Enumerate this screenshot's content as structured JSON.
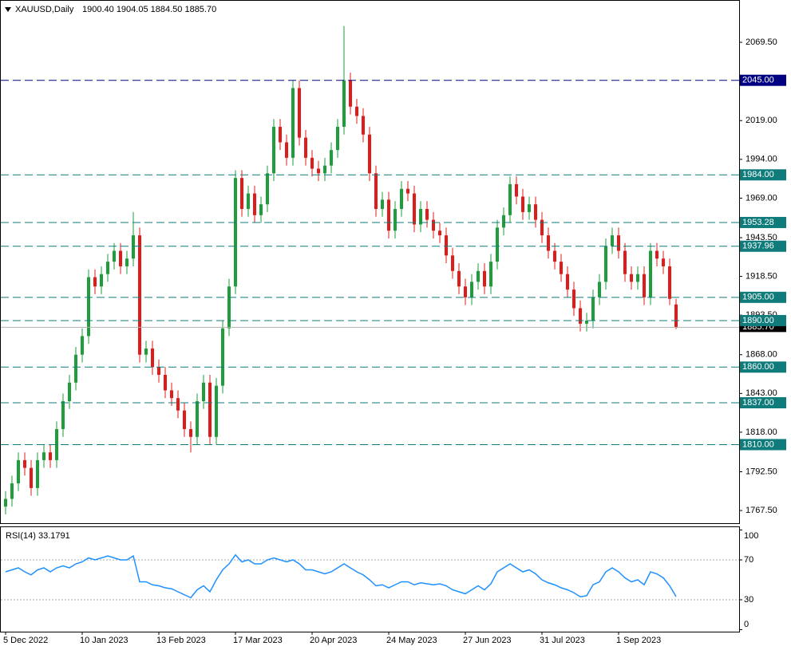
{
  "chart_data": {
    "type": "candlestick",
    "title": "XAUUSD,Daily",
    "quote": "1900.40 1904.05 1884.50 1885.70",
    "categories": [
      "5 Dec 2022",
      null,
      null,
      null,
      null,
      null,
      null,
      null,
      null,
      null,
      null,
      null,
      "10 Jan 2023",
      null,
      null,
      null,
      null,
      null,
      null,
      null,
      null,
      null,
      null,
      null,
      "13 Feb 2023",
      null,
      null,
      null,
      null,
      null,
      null,
      null,
      null,
      null,
      null,
      null,
      "17 Mar 2023",
      null,
      null,
      null,
      null,
      null,
      null,
      null,
      null,
      null,
      null,
      null,
      "20 Apr 2023",
      null,
      null,
      null,
      null,
      null,
      null,
      null,
      null,
      null,
      null,
      null,
      "24 May 2023",
      null,
      null,
      null,
      null,
      null,
      null,
      null,
      null,
      null,
      null,
      null,
      "27 Jun 2023",
      null,
      null,
      null,
      null,
      null,
      null,
      null,
      null,
      null,
      null,
      null,
      "31 Jul 2023",
      null,
      null,
      null,
      null,
      null,
      null,
      null,
      null,
      null,
      null,
      null,
      "1 Sep 2023",
      null,
      null,
      null,
      null,
      null,
      null,
      null,
      null,
      null
    ],
    "open": [
      1770,
      1775,
      1785,
      1800,
      1795,
      1782,
      1800,
      1805,
      1800,
      1820,
      1838,
      1850,
      1868,
      1880,
      1918,
      1912,
      1920,
      1928,
      1935,
      1925,
      1930,
      1945,
      1868,
      1872,
      1860,
      1855,
      1845,
      1840,
      1832,
      1820,
      1815,
      1838,
      1850,
      1815,
      1848,
      1885,
      1912,
      1982,
      1962,
      1972,
      1958,
      1965,
      1985,
      2015,
      2005,
      1995,
      2040,
      2008,
      1995,
      1988,
      1985,
      1990,
      2000,
      2015,
      2045,
      2028,
      2022,
      2010,
      1985,
      1962,
      1968,
      1948,
      1962,
      1975,
      1972,
      1952,
      1962,
      1955,
      1948,
      1945,
      1932,
      1922,
      1912,
      1905,
      1915,
      1922,
      1912,
      1928,
      1950,
      1958,
      1978,
      1970,
      1960,
      1965,
      1955,
      1945,
      1935,
      1928,
      1920,
      1910,
      1898,
      1888,
      1890,
      1905,
      1915,
      1938,
      1945,
      1935,
      1920,
      1915,
      1920,
      1905,
      1935,
      1930,
      1925,
      1900.4
    ],
    "high": [
      1780,
      1790,
      1805,
      1805,
      1800,
      1805,
      1810,
      1810,
      1825,
      1843,
      1855,
      1873,
      1885,
      1923,
      1923,
      1925,
      1933,
      1940,
      1940,
      1935,
      1960,
      1950,
      1877,
      1877,
      1865,
      1860,
      1850,
      1845,
      1837,
      1825,
      1843,
      1855,
      1855,
      1853,
      1890,
      1917,
      1987,
      1987,
      1977,
      1977,
      1970,
      1990,
      2020,
      2020,
      2010,
      2045,
      2045,
      2013,
      2000,
      1993,
      1995,
      2005,
      2020,
      2080,
      2050,
      2033,
      2027,
      2015,
      1990,
      1973,
      1973,
      1967,
      1980,
      1980,
      1977,
      1967,
      1967,
      1960,
      1953,
      1950,
      1937,
      1927,
      1917,
      1920,
      1927,
      1927,
      1933,
      1955,
      1963,
      1983,
      1983,
      1975,
      1970,
      1970,
      1960,
      1950,
      1940,
      1933,
      1925,
      1915,
      1903,
      1895,
      1910,
      1920,
      1943,
      1950,
      1950,
      1940,
      1925,
      1925,
      1925,
      1940,
      1940,
      1935,
      1930,
      1904.05
    ],
    "low": [
      1765,
      1770,
      1780,
      1790,
      1777,
      1777,
      1795,
      1795,
      1795,
      1815,
      1833,
      1845,
      1863,
      1875,
      1907,
      1907,
      1915,
      1923,
      1920,
      1920,
      1925,
      1863,
      1863,
      1855,
      1850,
      1840,
      1835,
      1827,
      1815,
      1805,
      1810,
      1833,
      1810,
      1810,
      1843,
      1880,
      1907,
      1957,
      1957,
      1953,
      1953,
      1960,
      1980,
      2000,
      1990,
      1990,
      2003,
      1990,
      1983,
      1980,
      1980,
      1985,
      1995,
      2010,
      2023,
      2017,
      2005,
      1980,
      1957,
      1957,
      1943,
      1943,
      1957,
      1967,
      1947,
      1947,
      1950,
      1943,
      1940,
      1927,
      1917,
      1907,
      1900,
      1900,
      1910,
      1907,
      1907,
      1923,
      1945,
      1953,
      1965,
      1955,
      1955,
      1950,
      1940,
      1930,
      1923,
      1915,
      1905,
      1893,
      1883,
      1883,
      1885,
      1900,
      1910,
      1933,
      1930,
      1915,
      1910,
      1910,
      1900,
      1900,
      1925,
      1920,
      1900,
      1884.5
    ],
    "close": [
      1775,
      1785,
      1800,
      1795,
      1782,
      1800,
      1805,
      1800,
      1820,
      1838,
      1850,
      1868,
      1880,
      1918,
      1912,
      1920,
      1928,
      1935,
      1925,
      1930,
      1945,
      1868,
      1872,
      1860,
      1855,
      1845,
      1840,
      1832,
      1820,
      1815,
      1838,
      1850,
      1815,
      1848,
      1885,
      1912,
      1982,
      1962,
      1972,
      1958,
      1965,
      1985,
      2015,
      2005,
      1995,
      2040,
      2008,
      1995,
      1988,
      1985,
      1990,
      2000,
      2015,
      2045,
      2028,
      2022,
      2010,
      1985,
      1962,
      1968,
      1948,
      1962,
      1975,
      1972,
      1952,
      1962,
      1955,
      1948,
      1945,
      1932,
      1922,
      1912,
      1905,
      1915,
      1922,
      1912,
      1928,
      1950,
      1958,
      1978,
      1970,
      1960,
      1965,
      1955,
      1945,
      1935,
      1928,
      1920,
      1910,
      1898,
      1888,
      1890,
      1905,
      1915,
      1938,
      1945,
      1935,
      1920,
      1915,
      1920,
      1905,
      1935,
      1930,
      1925,
      1904,
      1885.7
    ],
    "up_color": "#1e9e3a",
    "down_color": "#e01b1b",
    "ylim": [
      1758.8,
      2096.8
    ],
    "yticks": [
      {
        "value": 2069.5,
        "label": "2069.50"
      },
      {
        "value": 2019,
        "label": "2019.00"
      },
      {
        "value": 1994,
        "label": "1994.00"
      },
      {
        "value": 1969,
        "label": "1969.00"
      },
      {
        "value": 1943.5,
        "label": "1943.50"
      },
      {
        "value": 1918.5,
        "label": "1918.50"
      },
      {
        "value": 1893.5,
        "label": "1893.50"
      },
      {
        "value": 1868,
        "label": "1868.00"
      },
      {
        "value": 1843,
        "label": "1843.00"
      },
      {
        "value": 1818,
        "label": "1818.00"
      },
      {
        "value": 1792.5,
        "label": "1792.50"
      },
      {
        "value": 1767.5,
        "label": "1767.50"
      }
    ],
    "levels": [
      {
        "value": 2045,
        "label": "2045.00",
        "color": "#000080"
      },
      {
        "value": 1984,
        "label": "1984.00",
        "color": "#0f7b7b"
      },
      {
        "value": 1953.28,
        "label": "1953.28",
        "color": "#0f7b7b"
      },
      {
        "value": 1937.96,
        "label": "1937.96",
        "color": "#0f7b7b"
      },
      {
        "value": 1905,
        "label": "1905.00",
        "color": "#0f7b7b"
      },
      {
        "value": 1890,
        "label": "1890.00",
        "color": "#0f7b7b"
      },
      {
        "value": 1860,
        "label": "1860.00",
        "color": "#0f7b7b"
      },
      {
        "value": 1837,
        "label": "1837.00",
        "color": "#0f7b7b"
      },
      {
        "value": 1810,
        "label": "1810.00",
        "color": "#0f7b7b"
      }
    ],
    "current_price": {
      "value": 1885.7,
      "label": "1885.70",
      "color": "#000000"
    },
    "indicator": {
      "title": "RSI(14) 33.1791",
      "color": "#1e90ff",
      "ylim": [
        -2,
        103.6
      ],
      "yticks": [
        0,
        30,
        70,
        100
      ],
      "levels": [
        30,
        70
      ],
      "values": [
        58,
        60,
        62,
        58,
        55,
        60,
        62,
        58,
        62,
        64,
        62,
        66,
        68,
        72,
        70,
        72,
        74,
        72,
        70,
        70,
        74,
        48,
        48,
        45,
        44,
        42,
        41,
        38,
        35,
        32,
        40,
        44,
        38,
        50,
        60,
        66,
        75,
        68,
        70,
        66,
        66,
        70,
        72,
        70,
        68,
        70,
        66,
        60,
        60,
        58,
        56,
        58,
        62,
        66,
        62,
        58,
        55,
        50,
        44,
        45,
        42,
        45,
        48,
        48,
        45,
        47,
        46,
        45,
        46,
        44,
        40,
        38,
        36,
        40,
        44,
        40,
        46,
        58,
        62,
        66,
        62,
        58,
        60,
        56,
        50,
        47,
        45,
        42,
        40,
        37,
        33,
        34,
        45,
        48,
        58,
        62,
        58,
        52,
        48,
        50,
        45,
        58,
        56,
        52,
        44,
        33.18
      ]
    }
  }
}
